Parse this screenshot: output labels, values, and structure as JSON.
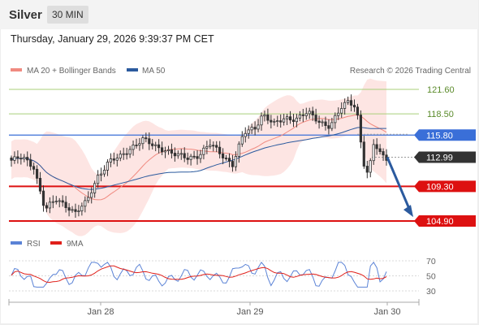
{
  "header": {
    "title": "Silver",
    "timeframe": "30 MIN"
  },
  "datetime": "Thursday, January 29, 2026 9:39:37 PM CET",
  "legend": {
    "ma20_label": "MA 20 + Bollinger Bands",
    "ma50_label": "MA 50",
    "credit": "Research © 2026 Trading Central",
    "rsi_label": "RSI",
    "ma9_label": "9MA"
  },
  "colors": {
    "ma20": "#f08a80",
    "ma50": "#2b5a9e",
    "up": "#ffffff",
    "down": "#333333",
    "band": "#fde0de",
    "rsi": "#5b83d6",
    "ma9": "#e0201a",
    "red_level": "#dd1111",
    "blue_level": "#3a6fd8",
    "green_level": "#a8cf7a",
    "arrow": "#2b5a9e"
  },
  "chart_data": [
    {
      "type": "candlestick",
      "title": "Silver",
      "x_ticks": [
        "Jan 28",
        "Jan 29",
        "Jan 30"
      ],
      "ylim": [
        103,
        123
      ],
      "levels": [
        {
          "value": 121.6,
          "label": "121.60",
          "style": "resistance"
        },
        {
          "value": 118.5,
          "label": "118.50",
          "style": "resistance"
        },
        {
          "value": 115.8,
          "label": "115.80",
          "style": "pivot"
        },
        {
          "value": 112.99,
          "label": "112.99",
          "style": "last"
        },
        {
          "value": 109.3,
          "label": "109.30",
          "style": "support"
        },
        {
          "value": 104.9,
          "label": "104.90",
          "style": "support"
        }
      ],
      "scenario": "arrow from last price 112.99 down toward 104.90"
    },
    {
      "type": "line",
      "series": [
        {
          "name": "RSI"
        },
        {
          "name": "9MA"
        }
      ],
      "y_ticks": [
        70,
        50,
        30
      ],
      "ylim": [
        20,
        80
      ]
    }
  ]
}
